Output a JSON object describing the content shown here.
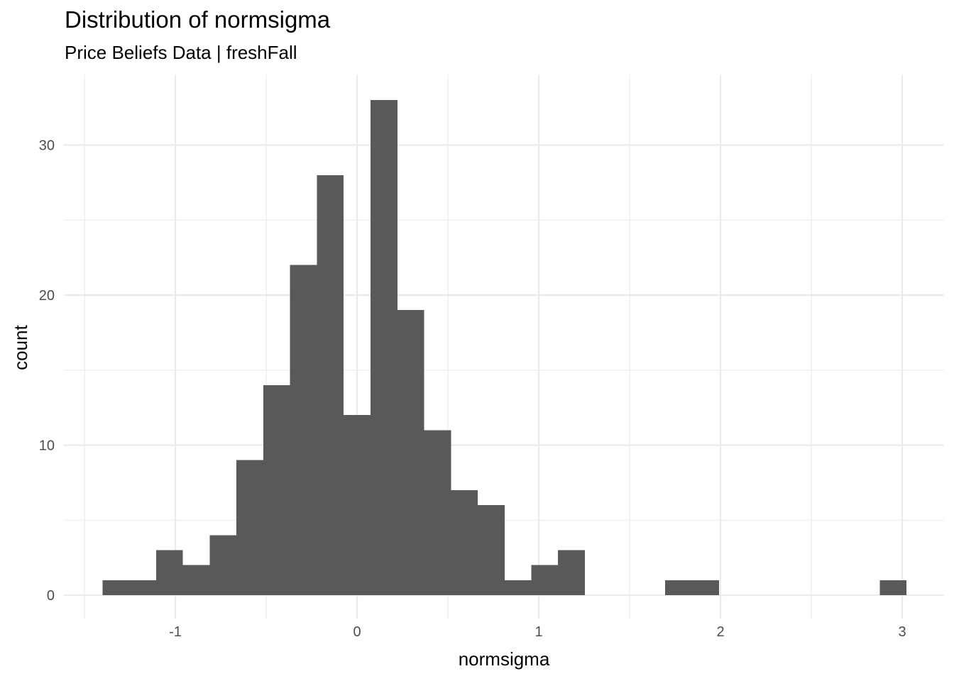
{
  "chart_data": {
    "type": "bar",
    "title": "Distribution of normsigma",
    "subtitle": "Price Beliefs Data | freshFall",
    "xlabel": "normsigma",
    "ylabel": "count",
    "xlim": [
      -1.5,
      3.15
    ],
    "ylim": [
      -1.6,
      33.7
    ],
    "x_ticks": [
      -1,
      0,
      1,
      2,
      3
    ],
    "x_tick_labels": [
      "-1",
      "0",
      "1",
      "2",
      "3"
    ],
    "y_ticks": [
      0,
      10,
      20,
      30
    ],
    "y_tick_labels": [
      "0",
      "10",
      "20",
      "30"
    ],
    "bin_width": 0.1475,
    "bin_centers": [
      -1.327,
      -1.18,
      -1.032,
      -0.885,
      -0.737,
      -0.59,
      -0.442,
      -0.295,
      -0.147,
      0.0,
      0.148,
      0.295,
      0.443,
      0.59,
      0.738,
      0.885,
      1.033,
      1.18,
      1.328,
      1.475,
      1.623,
      1.77,
      1.918,
      2.065,
      2.213,
      2.36,
      2.508,
      2.655,
      2.803,
      2.95
    ],
    "counts": [
      1,
      1,
      3,
      2,
      4,
      9,
      14,
      22,
      28,
      12,
      33,
      19,
      11,
      7,
      6,
      1,
      2,
      3,
      0,
      0,
      0,
      1,
      1,
      0,
      0,
      0,
      0,
      0,
      0,
      1
    ],
    "bar_color": "#595959",
    "grid": true,
    "grid_color": "#ebebeb",
    "legend": "none"
  }
}
